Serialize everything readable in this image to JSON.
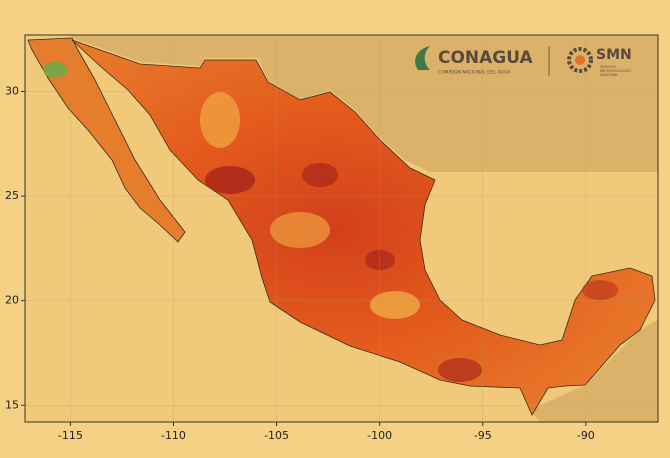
{
  "chart_data": {
    "type": "map",
    "xlim": [
      -117.2,
      -86.5
    ],
    "ylim": [
      14.2,
      32.7
    ],
    "xticks": [
      -115,
      -110,
      -105,
      -100,
      -95,
      -90
    ],
    "yticks": [
      15,
      20,
      25,
      30
    ],
    "grid": true
  },
  "logos": {
    "conagua": "CONAGUA",
    "conagua_subtitle": "COMISIÓN NACIONAL DEL AGUA",
    "smn": "SMN",
    "smn_subtitle": [
      "SERVICIO",
      "METEOROLÓGICO",
      "NACIONAL"
    ]
  }
}
